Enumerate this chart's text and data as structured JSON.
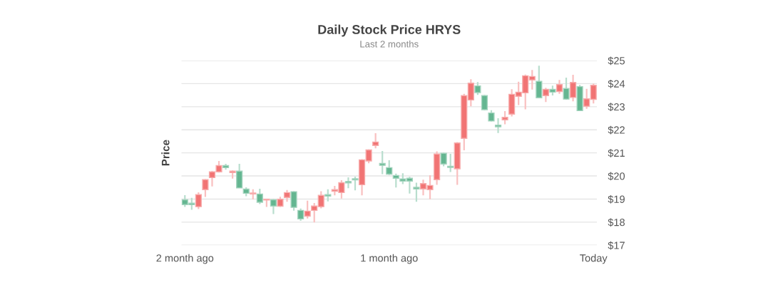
{
  "chart_data": {
    "type": "candlestick",
    "title": "Daily Stock Price HRYS",
    "subtitle": "Last 2 months",
    "ylabel": "Price",
    "categories": [
      "2 month ago",
      null,
      null,
      null,
      null,
      null,
      null,
      null,
      null,
      null,
      null,
      null,
      null,
      null,
      null,
      null,
      null,
      null,
      null,
      null,
      null,
      null,
      null,
      null,
      null,
      null,
      null,
      null,
      null,
      null,
      "1 month ago",
      null,
      null,
      null,
      null,
      null,
      null,
      null,
      null,
      null,
      null,
      null,
      null,
      null,
      null,
      null,
      null,
      null,
      null,
      null,
      null,
      null,
      null,
      null,
      null,
      null,
      null,
      null,
      null,
      null,
      "Today"
    ],
    "ohlc": [
      [
        18.97,
        19.17,
        18.66,
        18.76
      ],
      [
        18.82,
        19.05,
        18.54,
        18.76
      ],
      [
        18.67,
        19.29,
        18.57,
        19.19
      ],
      [
        19.41,
        19.86,
        19.09,
        19.84
      ],
      [
        19.93,
        20.22,
        19.55,
        20.18
      ],
      [
        20.18,
        20.65,
        20.15,
        20.45
      ],
      [
        20.45,
        20.53,
        20.27,
        20.36
      ],
      [
        20.15,
        20.24,
        19.89,
        20.21
      ],
      [
        20.21,
        20.53,
        19.48,
        19.48
      ],
      [
        19.43,
        19.51,
        19.12,
        19.25
      ],
      [
        19.22,
        19.42,
        18.98,
        19.26
      ],
      [
        19.22,
        19.45,
        18.78,
        18.86
      ],
      [
        18.96,
        19.0,
        18.66,
        18.99
      ],
      [
        18.97,
        19.0,
        18.35,
        18.7
      ],
      [
        18.69,
        19.1,
        18.66,
        18.99
      ],
      [
        19.07,
        19.39,
        18.88,
        19.28
      ],
      [
        19.32,
        19.34,
        18.5,
        18.64
      ],
      [
        18.51,
        18.59,
        18.06,
        18.14
      ],
      [
        18.26,
        18.93,
        18.16,
        18.48
      ],
      [
        18.51,
        18.83,
        17.99,
        18.7
      ],
      [
        18.67,
        19.34,
        18.6,
        19.16
      ],
      [
        19.19,
        19.42,
        18.9,
        19.13
      ],
      [
        19.34,
        19.57,
        19.16,
        19.41
      ],
      [
        19.28,
        19.82,
        19.02,
        19.71
      ],
      [
        19.76,
        19.94,
        19.47,
        19.7
      ],
      [
        19.88,
        19.97,
        19.38,
        19.83
      ],
      [
        19.62,
        20.73,
        19.16,
        20.7
      ],
      [
        20.65,
        21.15,
        20.55,
        21.13
      ],
      [
        21.32,
        21.85,
        21.2,
        21.47
      ],
      [
        20.54,
        21.08,
        20.08,
        20.46
      ],
      [
        20.36,
        20.68,
        20.04,
        20.08
      ],
      [
        20.02,
        20.1,
        19.5,
        19.9
      ],
      [
        19.87,
        20.12,
        19.65,
        19.78
      ],
      [
        19.9,
        19.96,
        19.24,
        19.78
      ],
      [
        19.51,
        19.71,
        18.88,
        19.44
      ],
      [
        19.44,
        19.84,
        19.16,
        19.67
      ],
      [
        19.41,
        20.03,
        18.99,
        19.59
      ],
      [
        19.84,
        21.07,
        19.62,
        20.95
      ],
      [
        20.98,
        21.01,
        20.42,
        20.52
      ],
      [
        20.42,
        20.96,
        20.17,
        20.37
      ],
      [
        20.31,
        21.47,
        19.62,
        21.43
      ],
      [
        21.63,
        23.56,
        21.11,
        23.48
      ],
      [
        23.29,
        24.19,
        23.02,
        24.02
      ],
      [
        23.9,
        24.07,
        23.51,
        23.61
      ],
      [
        23.48,
        23.51,
        22.84,
        22.87
      ],
      [
        22.73,
        22.85,
        22.36,
        22.38
      ],
      [
        22.2,
        22.5,
        21.86,
        22.13
      ],
      [
        22.43,
        22.81,
        22.24,
        22.54
      ],
      [
        22.68,
        23.76,
        22.58,
        23.54
      ],
      [
        23.45,
        24.08,
        23.07,
        23.63
      ],
      [
        23.6,
        24.39,
        22.89,
        24.34
      ],
      [
        24.16,
        24.59,
        23.74,
        24.31
      ],
      [
        24.1,
        24.78,
        23.37,
        23.39
      ],
      [
        23.48,
        23.82,
        23.2,
        23.75
      ],
      [
        23.75,
        23.91,
        23.49,
        23.63
      ],
      [
        23.66,
        24.16,
        23.56,
        23.96
      ],
      [
        23.79,
        24.26,
        23.3,
        23.33
      ],
      [
        23.4,
        24.38,
        23.23,
        24.05
      ],
      [
        23.87,
        23.94,
        22.81,
        22.83
      ],
      [
        23.02,
        23.77,
        22.91,
        23.34
      ],
      [
        23.32,
        24.0,
        23.14,
        23.93
      ]
    ],
    "colors": [
      "#64b691",
      "#64b691",
      "#f17474",
      "#f17474",
      "#f17474",
      "#f17474",
      "#64b691",
      "#f17474",
      "#64b691",
      "#64b691",
      "#f17474",
      "#64b691",
      "#f17474",
      "#64b691",
      "#f17474",
      "#f17474",
      "#64b691",
      "#64b691",
      "#f17474",
      "#f17474",
      "#f17474",
      "#64b691",
      "#f17474",
      "#f17474",
      "#64b691",
      "#64b691",
      "#f17474",
      "#f17474",
      "#f17474",
      "#64b691",
      "#64b691",
      "#64b691",
      "#64b691",
      "#64b691",
      "#64b691",
      "#f17474",
      "#f17474",
      "#f17474",
      "#64b691",
      "#64b691",
      "#f17474",
      "#f17474",
      "#f17474",
      "#64b691",
      "#64b691",
      "#64b691",
      "#64b691",
      "#f17474",
      "#f17474",
      "#f17474",
      "#f17474",
      "#f17474",
      "#64b691",
      "#f17474",
      "#64b691",
      "#f17474",
      "#64b691",
      "#f17474",
      "#64b691",
      "#f17474",
      "#f17474"
    ],
    "ylim": [
      17,
      25
    ],
    "yticks": [
      {
        "value": 17,
        "label": "$17"
      },
      {
        "value": 18,
        "label": "$18"
      },
      {
        "value": 19,
        "label": "$19"
      },
      {
        "value": 20,
        "label": "$20"
      },
      {
        "value": 21,
        "label": "$21"
      },
      {
        "value": 22,
        "label": "$22"
      },
      {
        "value": 23,
        "label": "$23"
      },
      {
        "value": 24,
        "label": "$24"
      },
      {
        "value": 25,
        "label": "$25"
      }
    ],
    "grid": "y"
  }
}
